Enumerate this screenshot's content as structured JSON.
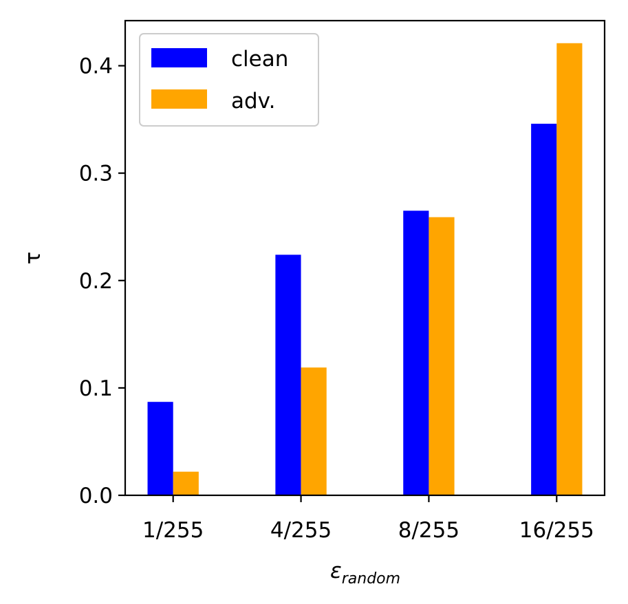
{
  "chart_data": {
    "type": "bar",
    "categories": [
      "1/255",
      "4/255",
      "8/255",
      "16/255"
    ],
    "series": [
      {
        "name": "clean",
        "values": [
          0.087,
          0.224,
          0.265,
          0.346
        ],
        "color": "#0000ff"
      },
      {
        "name": "adv.",
        "values": [
          0.022,
          0.119,
          0.259,
          0.421
        ],
        "color": "#ffa500"
      }
    ],
    "xlabel_base": "ε",
    "xlabel_sub": "random",
    "ylabel": "τ",
    "ylim": [
      0,
      0.442
    ],
    "yticks": [
      "0.0",
      "0.1",
      "0.2",
      "0.3",
      "0.4"
    ],
    "grid": false,
    "legend_position": "top-left"
  }
}
